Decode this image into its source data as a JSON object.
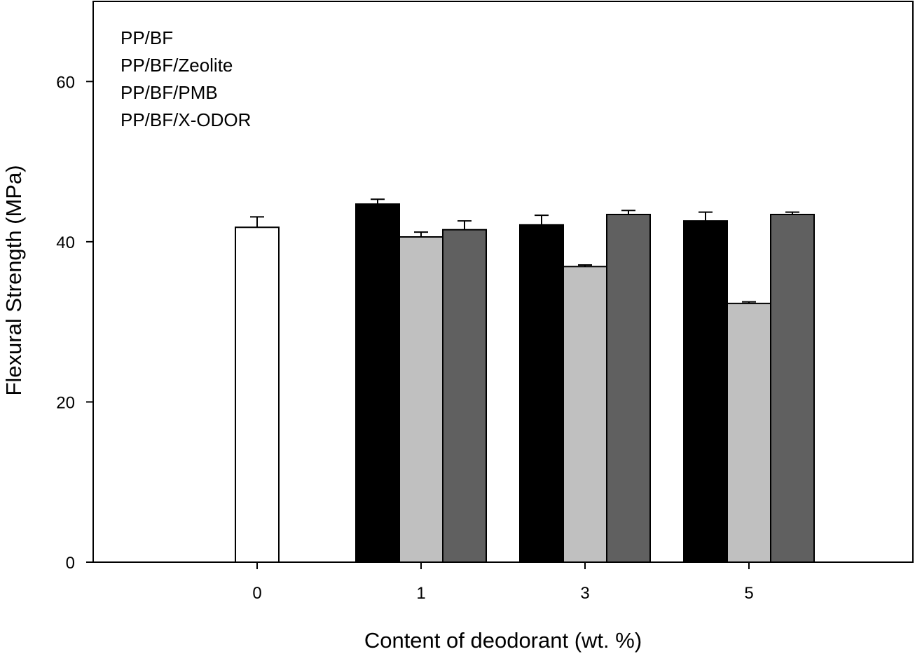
{
  "chart_data": {
    "type": "bar",
    "title": "",
    "xlabel": "Content of deodorant (wt. %)",
    "ylabel": "Flexural Strength (MPa)",
    "ylim": [
      0,
      70
    ],
    "yticks": [
      0,
      20,
      40,
      60
    ],
    "categories": [
      "0",
      "1",
      "3",
      "5"
    ],
    "legend_position": "top-left",
    "grid": false,
    "series": [
      {
        "name": "PP/BF",
        "color": "#ffffff",
        "values": [
          41.8,
          null,
          null,
          null
        ],
        "errors": [
          1.3,
          null,
          null,
          null
        ]
      },
      {
        "name": "PP/BF/Zeolite",
        "color": "#000000",
        "values": [
          null,
          44.7,
          42.1,
          42.6
        ],
        "errors": [
          null,
          0.6,
          1.2,
          1.1
        ]
      },
      {
        "name": "PP/BF/PMB",
        "color": "#c0c0c0",
        "values": [
          null,
          40.6,
          36.9,
          32.3
        ],
        "errors": [
          null,
          0.6,
          0.2,
          0.2
        ]
      },
      {
        "name": "PP/BF/X-ODOR",
        "color": "#606060",
        "values": [
          null,
          41.5,
          43.4,
          43.4
        ],
        "errors": [
          null,
          1.1,
          0.5,
          0.3
        ]
      }
    ]
  }
}
